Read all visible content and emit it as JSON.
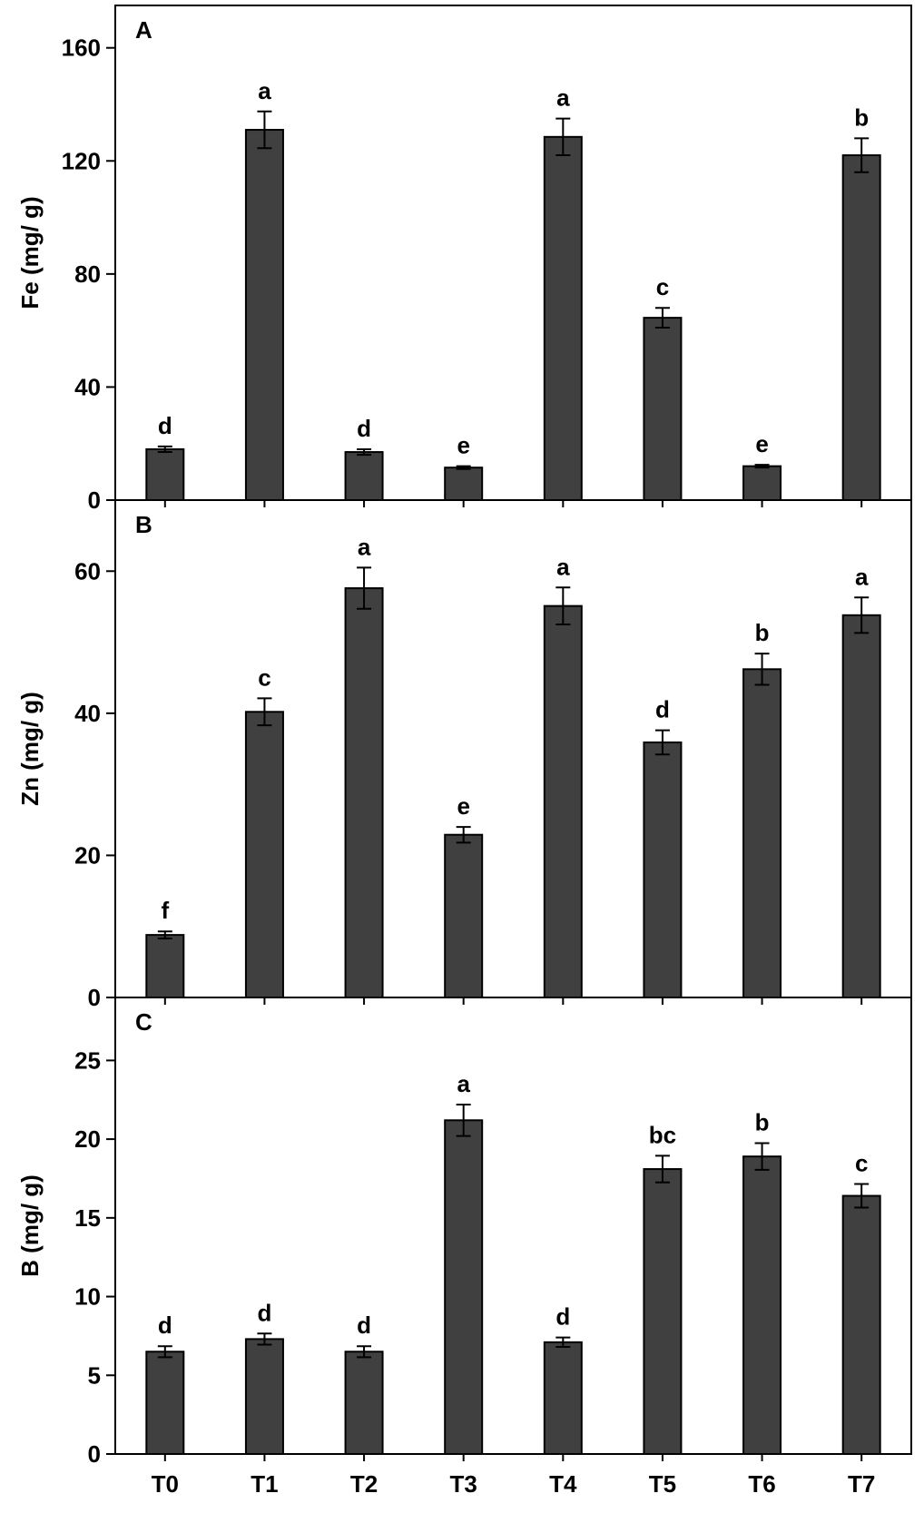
{
  "chart_data": {
    "type": "bar",
    "categories": [
      "T0",
      "T1",
      "T2",
      "T3",
      "T4",
      "T5",
      "T6",
      "T7"
    ],
    "bar_color": "#404040",
    "panels": [
      {
        "panel_label": "A",
        "ylabel": "Fe (mg/ g)",
        "ylim": [
          0,
          175
        ],
        "yticks": [
          0,
          40,
          80,
          120,
          160
        ],
        "values": [
          18,
          131,
          17,
          11.5,
          128.5,
          64.5,
          12,
          122
        ],
        "errors": [
          1,
          6.5,
          1,
          0.5,
          6.5,
          3.5,
          0.5,
          6
        ],
        "letters": [
          "d",
          "a",
          "d",
          "e",
          "a",
          "c",
          "e",
          "b"
        ]
      },
      {
        "panel_label": "B",
        "ylabel": "Zn (mg/ g)",
        "ylim": [
          0,
          70
        ],
        "yticks": [
          0,
          20,
          40,
          60
        ],
        "values": [
          8.8,
          40.2,
          57.6,
          22.9,
          55.1,
          35.9,
          46.2,
          53.8
        ],
        "errors": [
          0.5,
          1.9,
          2.9,
          1.1,
          2.6,
          1.7,
          2.2,
          2.5
        ],
        "letters": [
          "f",
          "c",
          "a",
          "e",
          "a",
          "d",
          "b",
          "a"
        ]
      },
      {
        "panel_label": "C",
        "ylabel": "B (mg/ g)",
        "ylim": [
          0,
          29
        ],
        "yticks": [
          0,
          5,
          10,
          15,
          20,
          25
        ],
        "values": [
          6.5,
          7.3,
          6.5,
          21.2,
          7.1,
          18.1,
          18.9,
          16.4
        ],
        "errors": [
          0.35,
          0.35,
          0.35,
          1.0,
          0.3,
          0.85,
          0.85,
          0.75
        ],
        "letters": [
          "d",
          "d",
          "d",
          "a",
          "d",
          "bc",
          "b",
          "c"
        ]
      }
    ]
  }
}
